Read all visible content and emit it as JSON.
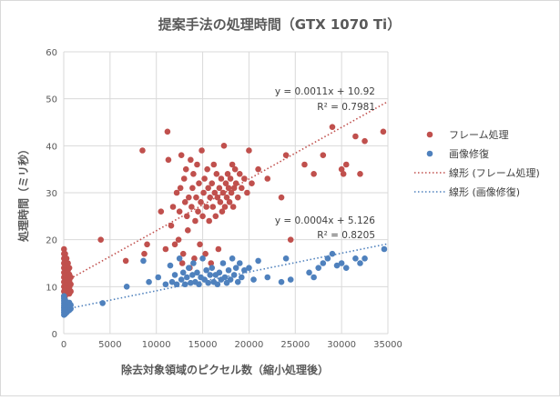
{
  "chart_data": {
    "type": "scatter",
    "title": "提案手法の処理時間（GTX 1070 Ti）",
    "xlabel": "除去対象領域のピクセル数（縮小処理後）",
    "ylabel": "処理時間（ミリ秒）",
    "xlim": [
      0,
      35000
    ],
    "ylim": [
      0,
      60
    ],
    "x_ticks": [
      "0",
      "5000",
      "10000",
      "15000",
      "20000",
      "25000",
      "30000",
      "35000"
    ],
    "y_ticks": [
      "0",
      "10",
      "20",
      "30",
      "40",
      "50",
      "60"
    ],
    "grid": true,
    "legend_position": "right",
    "series": [
      {
        "name": "フレーム処理",
        "color": "#C0504D",
        "trendline": {
          "slope": 0.0011,
          "intercept": 10.92,
          "r2": 0.7981,
          "name": "線形 (フレーム処理)",
          "equation": "y = 0.0011x + 10.92",
          "r2_text": "R² = 0.7981"
        },
        "points": [
          [
            30,
            8
          ],
          [
            30,
            9
          ],
          [
            30,
            10
          ],
          [
            30,
            11
          ],
          [
            30,
            12
          ],
          [
            30,
            13
          ],
          [
            30,
            14
          ],
          [
            30,
            15
          ],
          [
            30,
            16
          ],
          [
            30,
            17
          ],
          [
            30,
            18
          ],
          [
            150,
            8
          ],
          [
            150,
            9.5
          ],
          [
            150,
            11
          ],
          [
            150,
            12.5
          ],
          [
            150,
            14
          ],
          [
            150,
            15.5
          ],
          [
            150,
            17
          ],
          [
            300,
            8.5
          ],
          [
            300,
            10
          ],
          [
            300,
            11.5
          ],
          [
            300,
            13
          ],
          [
            300,
            14.5
          ],
          [
            300,
            16
          ],
          [
            450,
            9
          ],
          [
            450,
            10.5
          ],
          [
            450,
            12
          ],
          [
            450,
            13.5
          ],
          [
            450,
            15
          ],
          [
            600,
            8.5
          ],
          [
            600,
            9.8
          ],
          [
            600,
            11.2
          ],
          [
            600,
            12.6
          ],
          [
            600,
            14
          ],
          [
            750,
            9
          ],
          [
            750,
            10.5
          ],
          [
            750,
            12
          ],
          [
            4000,
            20
          ],
          [
            6700,
            15.5
          ],
          [
            8500,
            39
          ],
          [
            8700,
            17
          ],
          [
            9000,
            19
          ],
          [
            10500,
            26
          ],
          [
            11000,
            18
          ],
          [
            11200,
            43
          ],
          [
            11300,
            37
          ],
          [
            11600,
            23
          ],
          [
            11800,
            27
          ],
          [
            12000,
            19
          ],
          [
            12200,
            30
          ],
          [
            12400,
            20
          ],
          [
            12500,
            26
          ],
          [
            12600,
            31
          ],
          [
            12700,
            38
          ],
          [
            12800,
            15
          ],
          [
            12900,
            17
          ],
          [
            13000,
            33
          ],
          [
            13100,
            28
          ],
          [
            13200,
            35
          ],
          [
            13300,
            25
          ],
          [
            13400,
            22
          ],
          [
            13500,
            29
          ],
          [
            13600,
            14
          ],
          [
            13700,
            37
          ],
          [
            13800,
            27
          ],
          [
            13900,
            31
          ],
          [
            14000,
            34
          ],
          [
            14100,
            16
          ],
          [
            14200,
            24
          ],
          [
            14300,
            29
          ],
          [
            14400,
            36
          ],
          [
            14500,
            26
          ],
          [
            14600,
            32
          ],
          [
            14700,
            19
          ],
          [
            14800,
            28
          ],
          [
            14900,
            39
          ],
          [
            15000,
            25
          ],
          [
            15100,
            30
          ],
          [
            15200,
            33
          ],
          [
            15300,
            17
          ],
          [
            15400,
            27
          ],
          [
            15500,
            35
          ],
          [
            15600,
            31
          ],
          [
            15700,
            24
          ],
          [
            15800,
            29
          ],
          [
            15900,
            15
          ],
          [
            16000,
            32
          ],
          [
            16100,
            27
          ],
          [
            16200,
            36
          ],
          [
            16300,
            30
          ],
          [
            16400,
            25
          ],
          [
            16500,
            34
          ],
          [
            16600,
            29
          ],
          [
            16700,
            18
          ],
          [
            16800,
            31
          ],
          [
            16900,
            28
          ],
          [
            17000,
            33
          ],
          [
            17100,
            26
          ],
          [
            17200,
            30
          ],
          [
            17300,
            40
          ],
          [
            17400,
            27
          ],
          [
            17500,
            32
          ],
          [
            17600,
            29
          ],
          [
            17700,
            34
          ],
          [
            17800,
            31
          ],
          [
            17900,
            28
          ],
          [
            18000,
            33
          ],
          [
            18100,
            30
          ],
          [
            18200,
            36
          ],
          [
            18300,
            27
          ],
          [
            18400,
            31
          ],
          [
            18500,
            35
          ],
          [
            18600,
            32
          ],
          [
            18800,
            29
          ],
          [
            19000,
            34
          ],
          [
            19200,
            31
          ],
          [
            19500,
            33
          ],
          [
            19800,
            30
          ],
          [
            20000,
            39
          ],
          [
            20300,
            32
          ],
          [
            21000,
            35
          ],
          [
            22000,
            33
          ],
          [
            23500,
            29
          ],
          [
            24000,
            38
          ],
          [
            24500,
            20
          ],
          [
            26000,
            36
          ],
          [
            27000,
            34
          ],
          [
            28000,
            38
          ],
          [
            29000,
            44
          ],
          [
            30000,
            35
          ],
          [
            30200,
            34
          ],
          [
            30500,
            36
          ],
          [
            31500,
            42
          ],
          [
            32000,
            34
          ],
          [
            32500,
            41
          ],
          [
            34500,
            43
          ]
        ]
      },
      {
        "name": "画像修復",
        "color": "#4F81BD",
        "trendline": {
          "slope": 0.0004,
          "intercept": 5.126,
          "r2": 0.8205,
          "name": "線形 (画像修復)",
          "equation": "y = 0.0004x + 5.126",
          "r2_text": "R² = 0.8205"
        },
        "points": [
          [
            30,
            4
          ],
          [
            30,
            4.5
          ],
          [
            30,
            5
          ],
          [
            30,
            5.5
          ],
          [
            30,
            6
          ],
          [
            30,
            6.5
          ],
          [
            30,
            7
          ],
          [
            30,
            7.5
          ],
          [
            30,
            8
          ],
          [
            150,
            4.2
          ],
          [
            150,
            4.8
          ],
          [
            150,
            5.4
          ],
          [
            150,
            6
          ],
          [
            150,
            6.6
          ],
          [
            150,
            7.2
          ],
          [
            300,
            4.5
          ],
          [
            300,
            5.2
          ],
          [
            300,
            5.9
          ],
          [
            300,
            6.6
          ],
          [
            450,
            4.8
          ],
          [
            450,
            5.6
          ],
          [
            450,
            6.4
          ],
          [
            600,
            5
          ],
          [
            600,
            5.8
          ],
          [
            600,
            6.6
          ],
          [
            750,
            5.3
          ],
          [
            750,
            6.1
          ],
          [
            4200,
            6.5
          ],
          [
            6800,
            10
          ],
          [
            8600,
            15.5
          ],
          [
            9200,
            11
          ],
          [
            10200,
            12
          ],
          [
            11000,
            10.5
          ],
          [
            11500,
            14.5
          ],
          [
            11700,
            11
          ],
          [
            12000,
            12.5
          ],
          [
            12200,
            10.5
          ],
          [
            12500,
            16
          ],
          [
            12700,
            11.5
          ],
          [
            12900,
            13
          ],
          [
            13100,
            10.5
          ],
          [
            13300,
            12
          ],
          [
            13500,
            14
          ],
          [
            13700,
            10.8
          ],
          [
            13900,
            12.5
          ],
          [
            14000,
            15
          ],
          [
            14200,
            11
          ],
          [
            14400,
            13
          ],
          [
            14600,
            10.5
          ],
          [
            14800,
            12
          ],
          [
            15000,
            16
          ],
          [
            15200,
            11.5
          ],
          [
            15400,
            13.5
          ],
          [
            15600,
            10.8
          ],
          [
            15800,
            12.5
          ],
          [
            16000,
            14
          ],
          [
            16200,
            11
          ],
          [
            16400,
            12.5
          ],
          [
            16600,
            10.5
          ],
          [
            16800,
            13
          ],
          [
            17000,
            11.5
          ],
          [
            17200,
            15
          ],
          [
            17400,
            12
          ],
          [
            17600,
            10.8
          ],
          [
            17800,
            13.5
          ],
          [
            18000,
            11.5
          ],
          [
            18200,
            16
          ],
          [
            18400,
            12.5
          ],
          [
            18600,
            14
          ],
          [
            18800,
            11
          ],
          [
            19000,
            15
          ],
          [
            19200,
            12
          ],
          [
            19500,
            13.5
          ],
          [
            20000,
            14
          ],
          [
            20500,
            11.5
          ],
          [
            21000,
            15.5
          ],
          [
            22000,
            12
          ],
          [
            23500,
            11
          ],
          [
            24000,
            16
          ],
          [
            24500,
            11.5
          ],
          [
            26500,
            13
          ],
          [
            27000,
            12
          ],
          [
            27500,
            14
          ],
          [
            28000,
            15
          ],
          [
            28500,
            16
          ],
          [
            29000,
            17
          ],
          [
            29500,
            14.5
          ],
          [
            30000,
            15
          ],
          [
            30500,
            14
          ],
          [
            31500,
            16
          ],
          [
            32000,
            15
          ],
          [
            32500,
            16
          ],
          [
            34600,
            18
          ]
        ]
      }
    ]
  }
}
